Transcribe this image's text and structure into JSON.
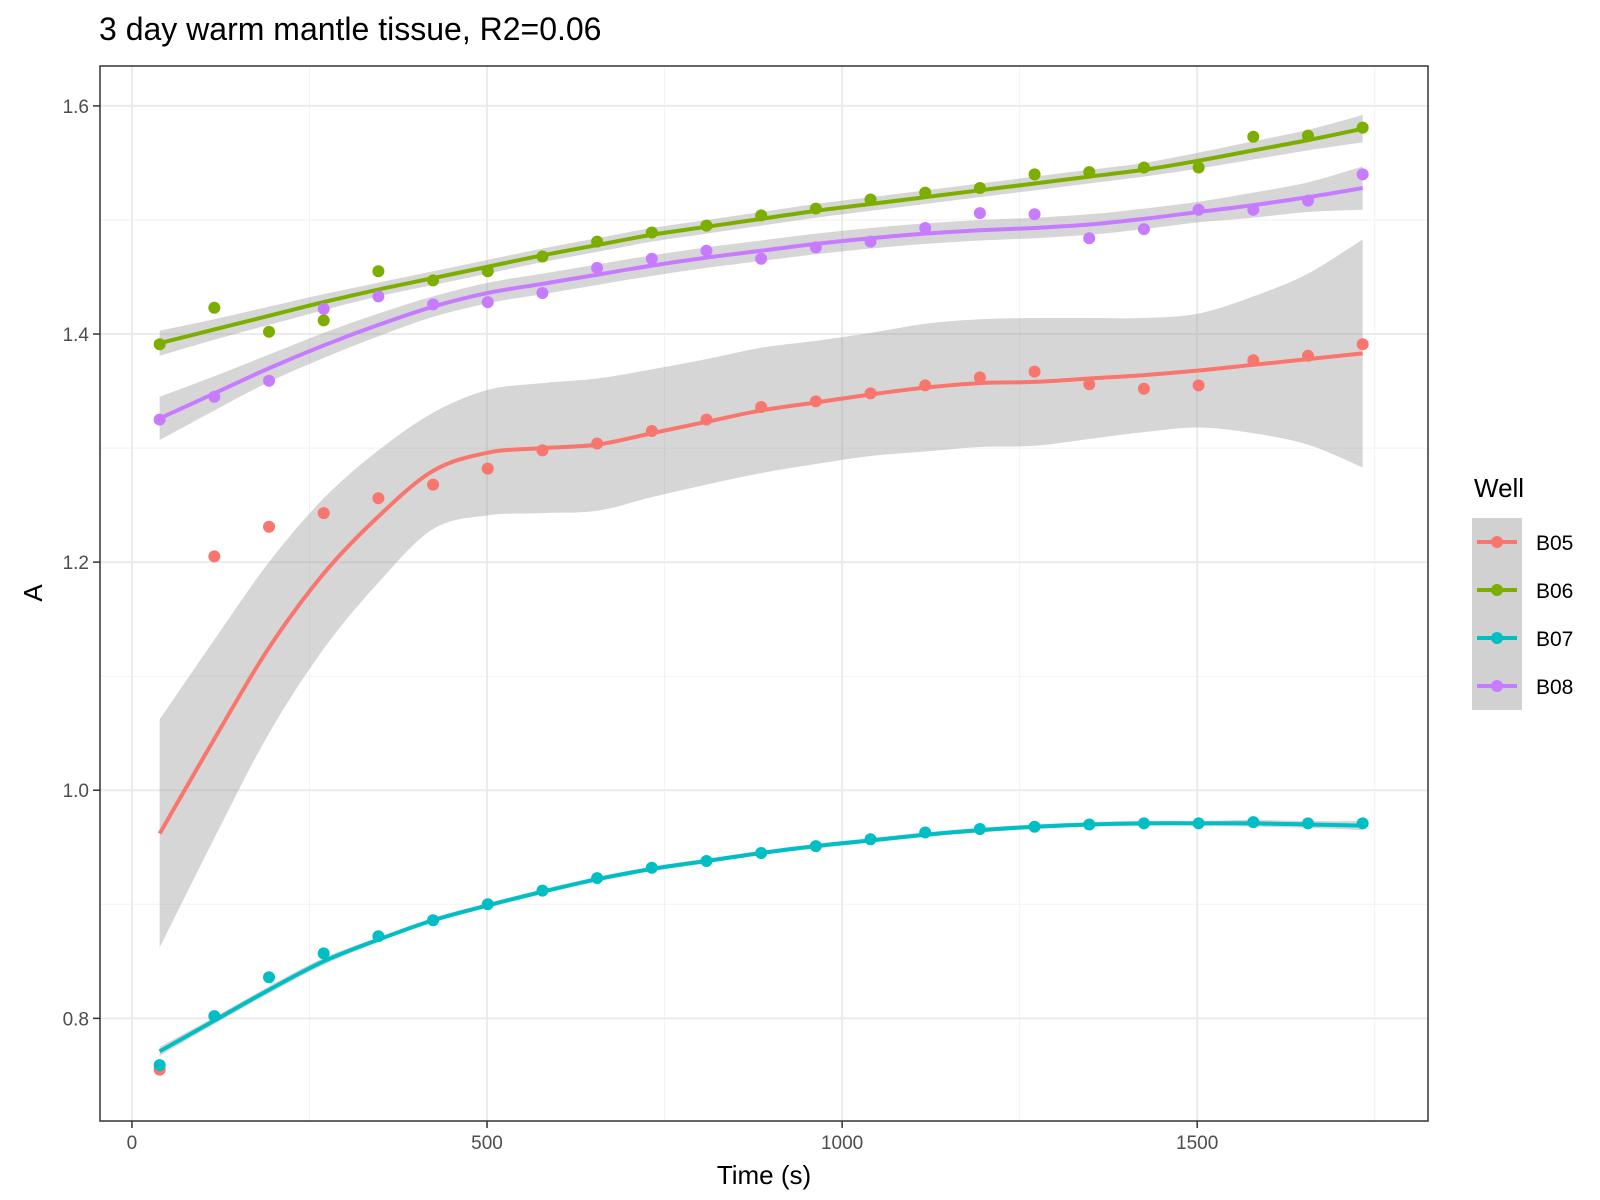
{
  "chart_data": {
    "type": "line",
    "title": "3 day warm mantle tissue, R2=0.06",
    "xlabel": "Time (s)",
    "ylabel": "A",
    "xlim": [
      -45,
      1825
    ],
    "ylim": [
      0.71,
      1.635
    ],
    "x_ticks": [
      0,
      500,
      1000,
      1500
    ],
    "x_tick_labels": [
      "0",
      "500",
      "1000",
      "1500"
    ],
    "y_ticks": [
      0.8,
      1.0,
      1.2,
      1.4,
      1.6
    ],
    "y_tick_labels": [
      "0.8",
      "1.0",
      "1.2",
      "1.4",
      "1.6"
    ],
    "grid": true,
    "legend": {
      "title": "Well",
      "position": "right"
    },
    "x": [
      39,
      116,
      193,
      270,
      347,
      424,
      501,
      578,
      655,
      732,
      809,
      886,
      963,
      1040,
      1117,
      1194,
      1271,
      1348,
      1425,
      1502,
      1579,
      1656,
      1733
    ],
    "series": [
      {
        "name": "B05",
        "color": "#F8766D",
        "points": [
          0.755,
          1.205,
          1.231,
          1.243,
          1.256,
          1.268,
          1.282,
          1.298,
          1.304,
          1.315,
          1.325,
          1.336,
          1.341,
          1.348,
          1.355,
          1.362,
          1.367,
          1.356,
          1.352,
          1.355,
          1.377,
          1.381,
          1.391
        ],
        "smooth": [
          0.962,
          1.045,
          1.125,
          1.19,
          1.24,
          1.28,
          1.296,
          1.3,
          1.303,
          1.313,
          1.323,
          1.333,
          1.34,
          1.347,
          1.353,
          1.357,
          1.358,
          1.361,
          1.364,
          1.368,
          1.373,
          1.378,
          1.383
        ],
        "band_halfwidth": [
          0.1,
          0.087,
          0.075,
          0.066,
          0.058,
          0.051,
          0.055,
          0.057,
          0.058,
          0.056,
          0.055,
          0.055,
          0.054,
          0.054,
          0.056,
          0.056,
          0.056,
          0.053,
          0.05,
          0.05,
          0.06,
          0.075,
          0.1
        ]
      },
      {
        "name": "B06",
        "color": "#7CAE00",
        "points": [
          1.391,
          1.423,
          1.402,
          1.412,
          1.455,
          1.447,
          1.455,
          1.468,
          1.481,
          1.489,
          1.495,
          1.504,
          1.51,
          1.518,
          1.524,
          1.528,
          1.54,
          1.542,
          1.546,
          1.546,
          1.573,
          1.574,
          1.581
        ],
        "smooth": [
          1.392,
          1.404,
          1.416,
          1.428,
          1.439,
          1.449,
          1.459,
          1.469,
          1.478,
          1.487,
          1.494,
          1.501,
          1.508,
          1.514,
          1.52,
          1.526,
          1.532,
          1.538,
          1.544,
          1.552,
          1.561,
          1.57,
          1.58
        ],
        "band_halfwidth": [
          0.011,
          0.009,
          0.008,
          0.007,
          0.006,
          0.006,
          0.006,
          0.006,
          0.006,
          0.006,
          0.006,
          0.006,
          0.006,
          0.006,
          0.006,
          0.006,
          0.006,
          0.006,
          0.006,
          0.007,
          0.008,
          0.009,
          0.012
        ]
      },
      {
        "name": "B07",
        "color": "#00BFC4",
        "points": [
          0.759,
          0.802,
          0.836,
          0.857,
          0.872,
          0.886,
          0.9,
          0.912,
          0.923,
          0.932,
          0.938,
          0.945,
          0.951,
          0.957,
          0.963,
          0.966,
          0.968,
          0.97,
          0.971,
          0.971,
          0.972,
          0.971,
          0.971
        ],
        "smooth": [
          0.771,
          0.798,
          0.825,
          0.85,
          0.869,
          0.886,
          0.899,
          0.911,
          0.922,
          0.931,
          0.938,
          0.945,
          0.951,
          0.956,
          0.961,
          0.965,
          0.968,
          0.97,
          0.971,
          0.971,
          0.971,
          0.97,
          0.969
        ],
        "band_halfwidth": [
          0.004,
          0.003,
          0.003,
          0.003,
          0.002,
          0.002,
          0.002,
          0.002,
          0.002,
          0.002,
          0.002,
          0.002,
          0.002,
          0.002,
          0.002,
          0.002,
          0.002,
          0.002,
          0.002,
          0.002,
          0.003,
          0.003,
          0.004
        ]
      },
      {
        "name": "B08",
        "color": "#C77CFF",
        "points": [
          1.325,
          1.345,
          1.359,
          1.422,
          1.433,
          1.426,
          1.428,
          1.436,
          1.458,
          1.466,
          1.473,
          1.466,
          1.476,
          1.481,
          1.493,
          1.506,
          1.505,
          1.484,
          1.492,
          1.509,
          1.509,
          1.517,
          1.54
        ],
        "smooth": [
          1.326,
          1.348,
          1.37,
          1.39,
          1.408,
          1.424,
          1.436,
          1.444,
          1.452,
          1.46,
          1.467,
          1.473,
          1.479,
          1.484,
          1.488,
          1.491,
          1.493,
          1.496,
          1.501,
          1.507,
          1.513,
          1.52,
          1.528
        ],
        "band_halfwidth": [
          0.019,
          0.015,
          0.012,
          0.011,
          0.01,
          0.009,
          0.009,
          0.009,
          0.009,
          0.009,
          0.009,
          0.009,
          0.009,
          0.009,
          0.009,
          0.009,
          0.009,
          0.009,
          0.009,
          0.009,
          0.011,
          0.013,
          0.019
        ]
      }
    ]
  }
}
